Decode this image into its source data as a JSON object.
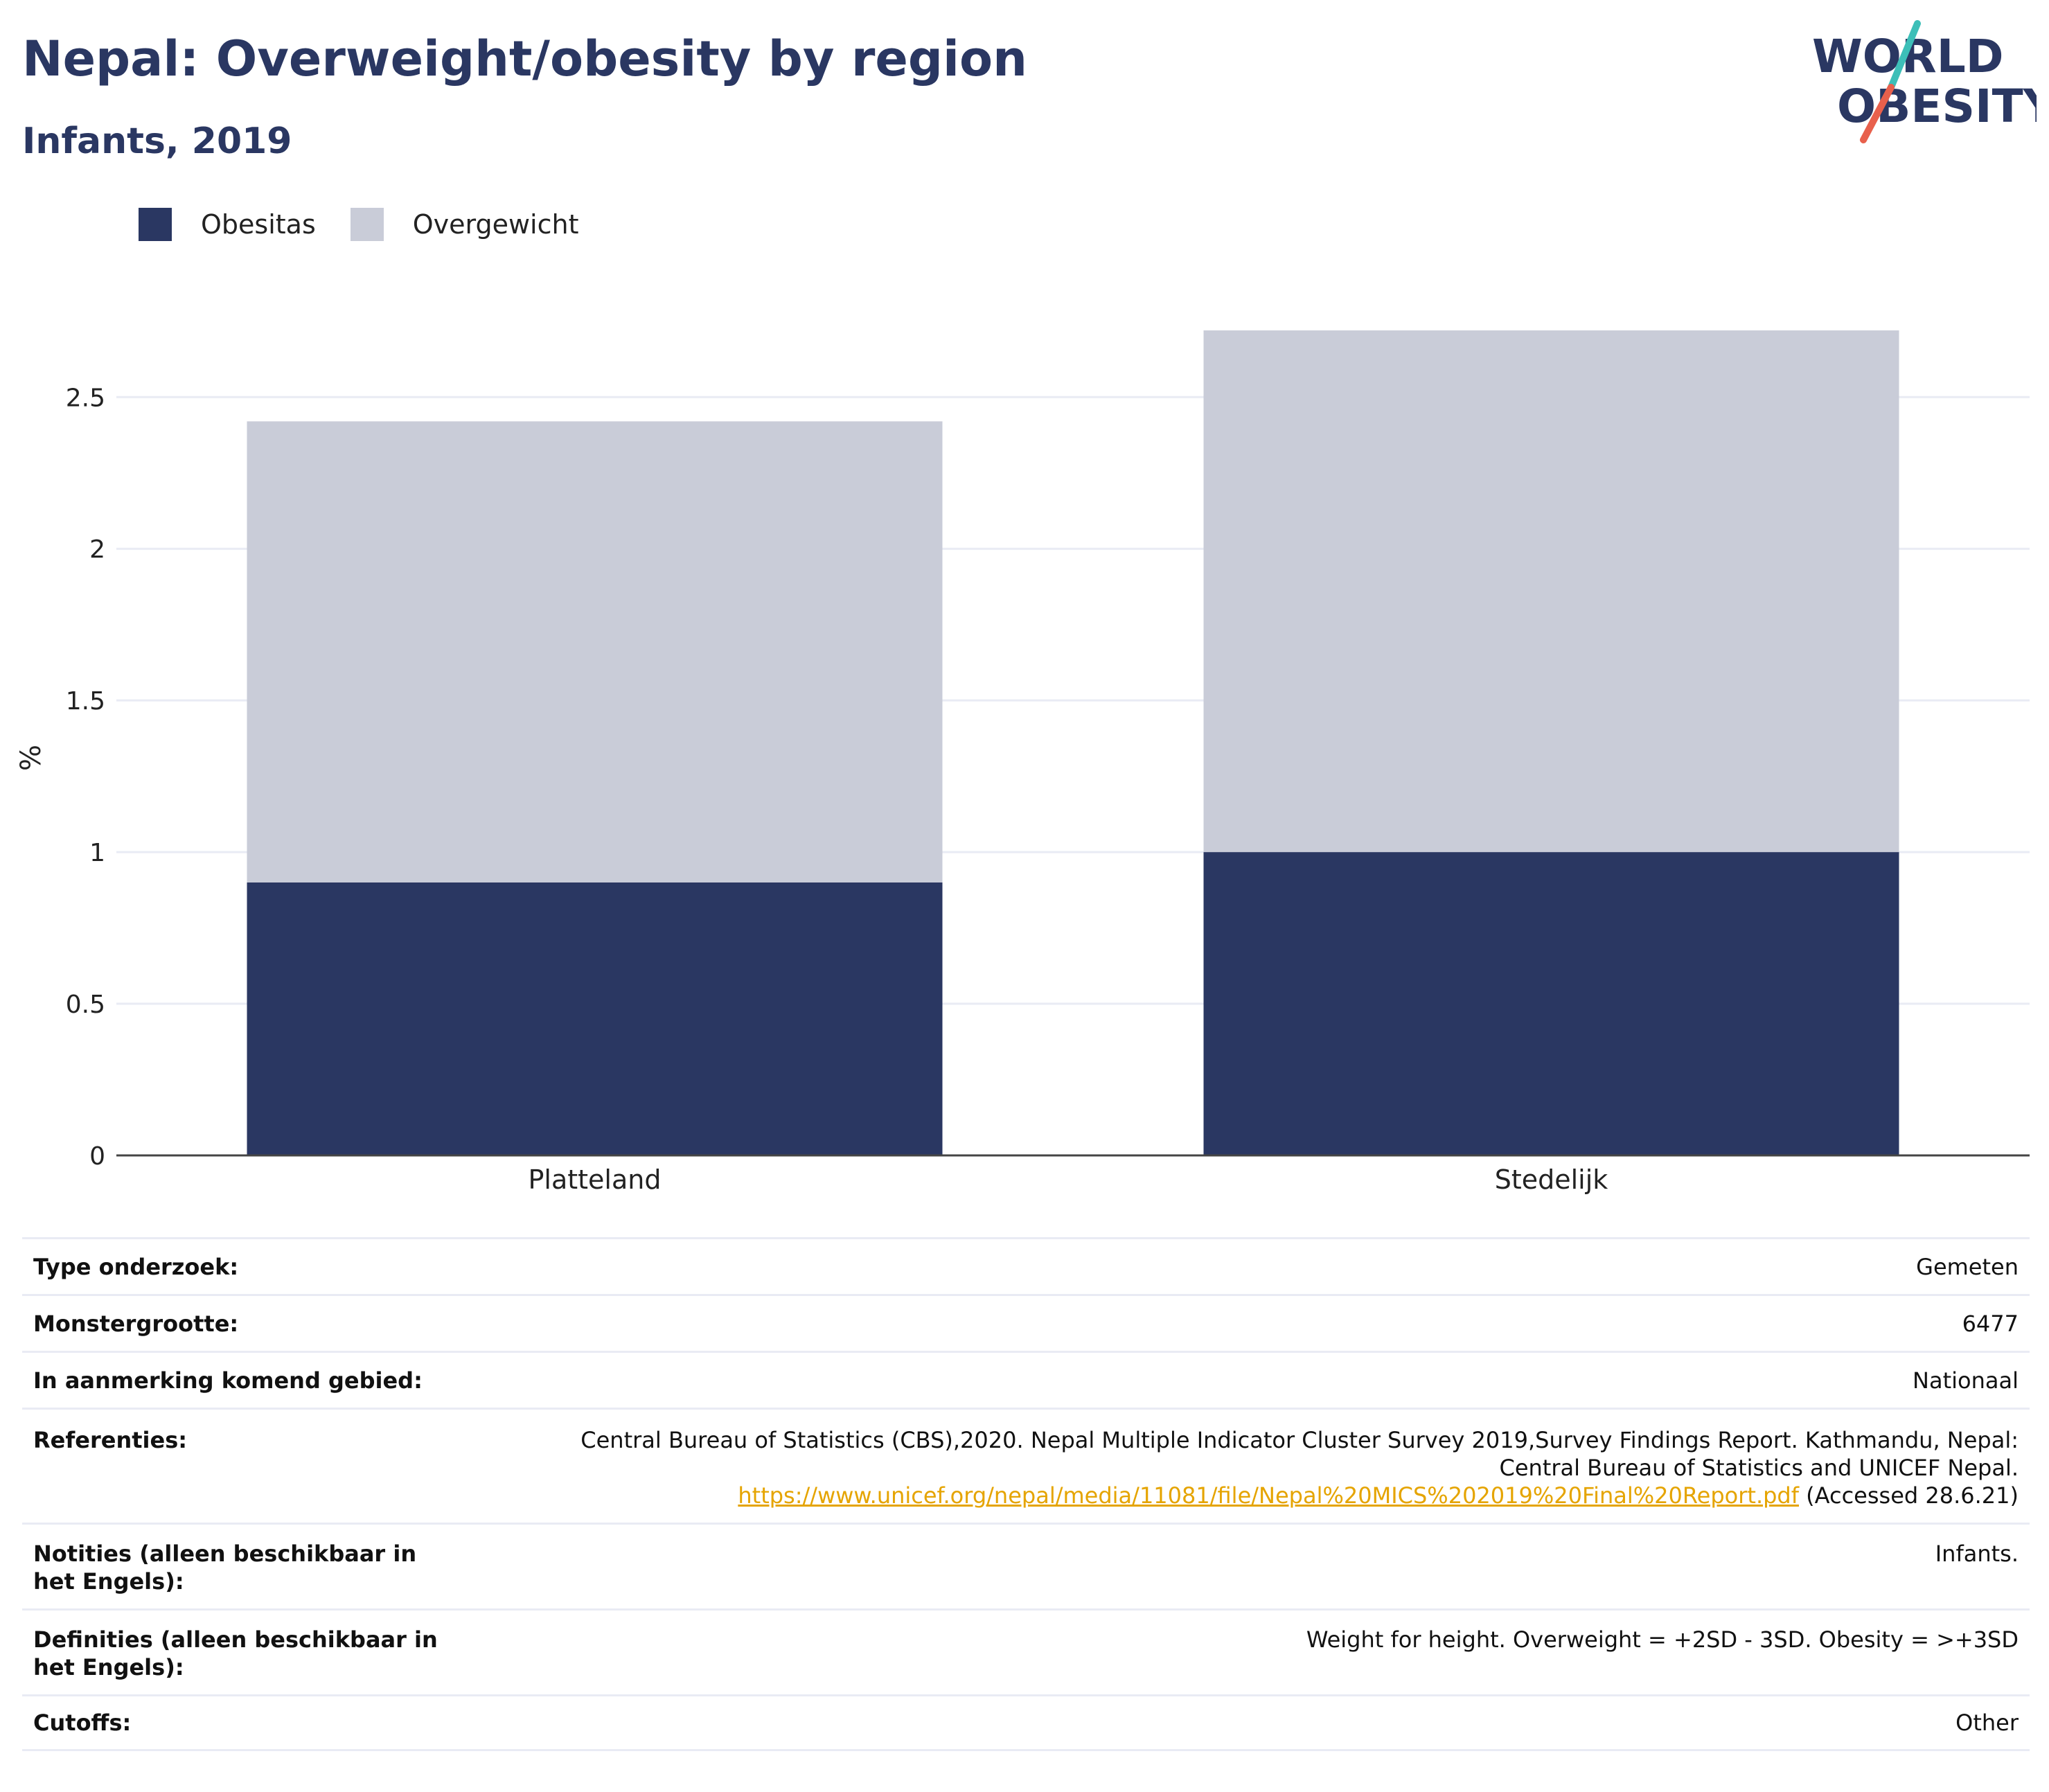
{
  "header": {
    "title": "Nepal: Overweight/obesity by region",
    "subtitle": "Infants, 2019"
  },
  "logo": {
    "line1": "WORLD",
    "line2": "OBESITY",
    "colors": {
      "text": "#2a3762",
      "accent_teal": "#3dbfb8",
      "accent_red": "#e8604c"
    }
  },
  "colors": {
    "obesity": "#2a3762",
    "overweight": "#c9ccd8",
    "grid": "#e9ebf4",
    "axis": "#444444"
  },
  "chart_data": {
    "type": "bar",
    "stacked": true,
    "categories": [
      "Platteland",
      "Stedelijk"
    ],
    "series": [
      {
        "name": "Obesitas",
        "values": [
          0.9,
          1.0
        ]
      },
      {
        "name": "Overgewicht",
        "values": [
          1.52,
          1.72
        ]
      }
    ],
    "ylabel": "%",
    "xlabel": "",
    "ylim": [
      0,
      2.85
    ],
    "yticks": [
      0,
      0.5,
      1,
      1.5,
      2,
      2.5
    ],
    "ytick_labels": [
      "0",
      "0.5",
      "1",
      "1.5",
      "2",
      "2.5"
    ],
    "grid": true,
    "legend_position": "top-left"
  },
  "info_table": [
    {
      "label": "Type onderzoek:",
      "value": "Gemeten"
    },
    {
      "label": "Monstergrootte:",
      "value": "6477"
    },
    {
      "label": "In aanmerking komend gebied:",
      "value": "Nationaal"
    },
    {
      "label": "Referenties:",
      "value_line1": "Central Bureau of Statistics (CBS),2020. Nepal Multiple Indicator Cluster Survey 2019,Survey Findings Report. Kathmandu, Nepal:",
      "value_line2": "Central Bureau of Statistics and UNICEF Nepal.",
      "link": "https://www.unicef.org/nepal/media/11081/file/Nepal%20MICS%202019%20Final%20Report.pdf",
      "link_suffix": " (Accessed 28.6.21)"
    },
    {
      "label": "Notities (alleen beschikbaar in het Engels):",
      "value": "Infants."
    },
    {
      "label": "Definities (alleen beschikbaar in het Engels):",
      "value": "Weight for height. Overweight = +2SD - 3SD. Obesity = >+3SD"
    },
    {
      "label": "Cutoffs:",
      "value": "Other"
    }
  ]
}
